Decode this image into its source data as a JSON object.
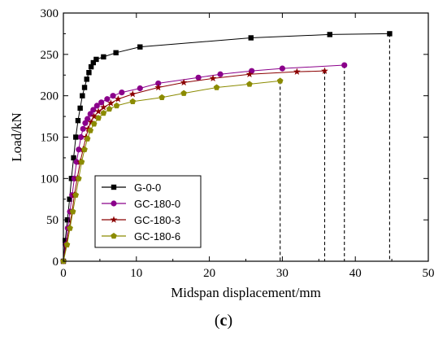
{
  "chart_data": {
    "type": "line",
    "xlabel": "Midspan displacement/mm",
    "ylabel": "Load/kN",
    "xlim": [
      0,
      50
    ],
    "ylim": [
      0,
      300
    ],
    "xticks": [
      0,
      10,
      20,
      30,
      40,
      50
    ],
    "yticks": [
      0,
      50,
      100,
      150,
      200,
      250,
      300
    ],
    "grid": false,
    "legend_position": "bottom-left",
    "caption_letter": "c",
    "series": [
      {
        "name": "G-0-0",
        "color": "#000000",
        "marker": "square",
        "ultimate_dashed": true,
        "points": [
          [
            0,
            0
          ],
          [
            0.25,
            25
          ],
          [
            0.55,
            50
          ],
          [
            0.85,
            75
          ],
          [
            1.1,
            100
          ],
          [
            1.4,
            125
          ],
          [
            1.7,
            150
          ],
          [
            2.0,
            170
          ],
          [
            2.3,
            185
          ],
          [
            2.6,
            200
          ],
          [
            2.9,
            210
          ],
          [
            3.2,
            220
          ],
          [
            3.5,
            228
          ],
          [
            3.8,
            235
          ],
          [
            4.1,
            240
          ],
          [
            4.5,
            244
          ],
          [
            5.5,
            247
          ],
          [
            7.2,
            252
          ],
          [
            10.5,
            259
          ],
          [
            25.7,
            270
          ],
          [
            36.5,
            274
          ],
          [
            44.7,
            275
          ]
        ]
      },
      {
        "name": "GC-180-0",
        "color": "#8B008B",
        "marker": "circle",
        "ultimate_dashed": true,
        "points": [
          [
            0,
            0
          ],
          [
            0.3,
            20
          ],
          [
            0.6,
            40
          ],
          [
            0.9,
            60
          ],
          [
            1.2,
            80
          ],
          [
            1.5,
            100
          ],
          [
            1.8,
            120
          ],
          [
            2.1,
            135
          ],
          [
            2.4,
            150
          ],
          [
            2.7,
            160
          ],
          [
            3.0,
            167
          ],
          [
            3.3,
            172
          ],
          [
            3.7,
            178
          ],
          [
            4.1,
            183
          ],
          [
            4.6,
            188
          ],
          [
            5.2,
            192
          ],
          [
            6.0,
            196
          ],
          [
            6.8,
            200
          ],
          [
            8.0,
            204
          ],
          [
            10.5,
            209
          ],
          [
            13.0,
            215
          ],
          [
            18.5,
            222
          ],
          [
            21.5,
            226
          ],
          [
            25.8,
            230
          ],
          [
            30.0,
            233
          ],
          [
            38.5,
            237
          ]
        ]
      },
      {
        "name": "GC-180-3",
        "color": "#8B0000",
        "marker": "star",
        "ultimate_dashed": true,
        "points": [
          [
            0,
            0
          ],
          [
            0.4,
            20
          ],
          [
            0.8,
            40
          ],
          [
            1.2,
            60
          ],
          [
            1.5,
            80
          ],
          [
            1.9,
            100
          ],
          [
            2.3,
            120
          ],
          [
            2.7,
            135
          ],
          [
            3.1,
            150
          ],
          [
            3.4,
            160
          ],
          [
            3.8,
            168
          ],
          [
            4.2,
            175
          ],
          [
            4.8,
            181
          ],
          [
            5.5,
            186
          ],
          [
            6.5,
            191
          ],
          [
            7.5,
            196
          ],
          [
            9.5,
            202
          ],
          [
            13.0,
            210
          ],
          [
            16.5,
            216
          ],
          [
            20.5,
            221
          ],
          [
            25.5,
            226
          ],
          [
            32.0,
            229
          ],
          [
            35.8,
            230
          ]
        ]
      },
      {
        "name": "GC-180-6",
        "color": "#8B8B00",
        "marker": "pentagon",
        "ultimate_dashed": true,
        "points": [
          [
            0,
            0
          ],
          [
            0.5,
            20
          ],
          [
            0.9,
            40
          ],
          [
            1.3,
            60
          ],
          [
            1.7,
            80
          ],
          [
            2.1,
            100
          ],
          [
            2.5,
            120
          ],
          [
            2.9,
            135
          ],
          [
            3.3,
            148
          ],
          [
            3.7,
            158
          ],
          [
            4.2,
            166
          ],
          [
            4.8,
            173
          ],
          [
            5.5,
            179
          ],
          [
            6.3,
            184
          ],
          [
            7.3,
            188
          ],
          [
            9.5,
            193
          ],
          [
            13.5,
            198
          ],
          [
            16.5,
            203
          ],
          [
            21.0,
            210
          ],
          [
            25.5,
            214
          ],
          [
            29.7,
            218
          ]
        ]
      }
    ]
  }
}
